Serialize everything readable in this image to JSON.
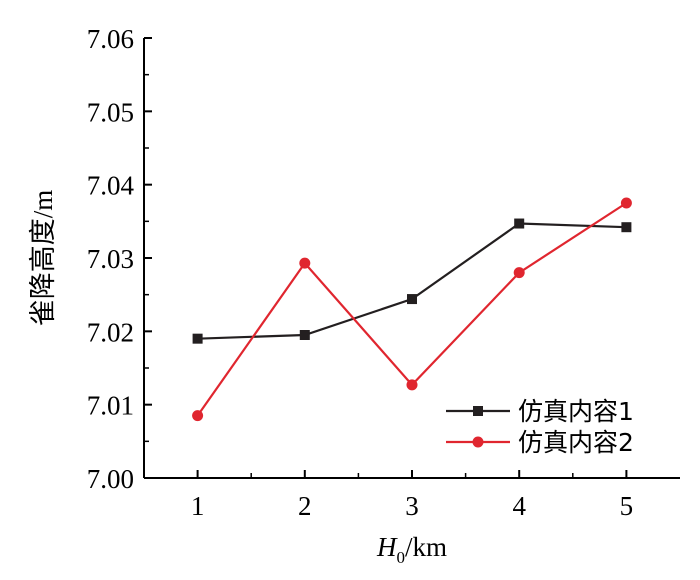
{
  "chart_data": {
    "type": "line",
    "x": [
      1,
      2,
      3,
      4,
      5
    ],
    "x_tick_labels": [
      "1",
      "2",
      "3",
      "4",
      "5"
    ],
    "y_tick_labels": [
      "7.00",
      "7.01",
      "7.02",
      "7.03",
      "7.04",
      "7.05",
      "7.06"
    ],
    "xlabel": {
      "italic": "H",
      "subscript": "0",
      "rest": "/km"
    },
    "ylabel": "雀降高度/m",
    "xlim": [
      0.5,
      5.5
    ],
    "ylim": [
      7.0,
      7.06
    ],
    "y_ticks": [
      7.0,
      7.01,
      7.02,
      7.03,
      7.04,
      7.05,
      7.06
    ],
    "grid": false,
    "legend_position": "bottom-right",
    "series": [
      {
        "name": "仿真内容1",
        "marker": "square",
        "color": "#231f20",
        "values": [
          7.019,
          7.0195,
          7.0244,
          7.0347,
          7.0342
        ]
      },
      {
        "name": "仿真内容2",
        "marker": "circle",
        "color": "#e0262f",
        "values": [
          7.0085,
          7.0293,
          7.0127,
          7.028,
          7.0375
        ]
      }
    ]
  }
}
